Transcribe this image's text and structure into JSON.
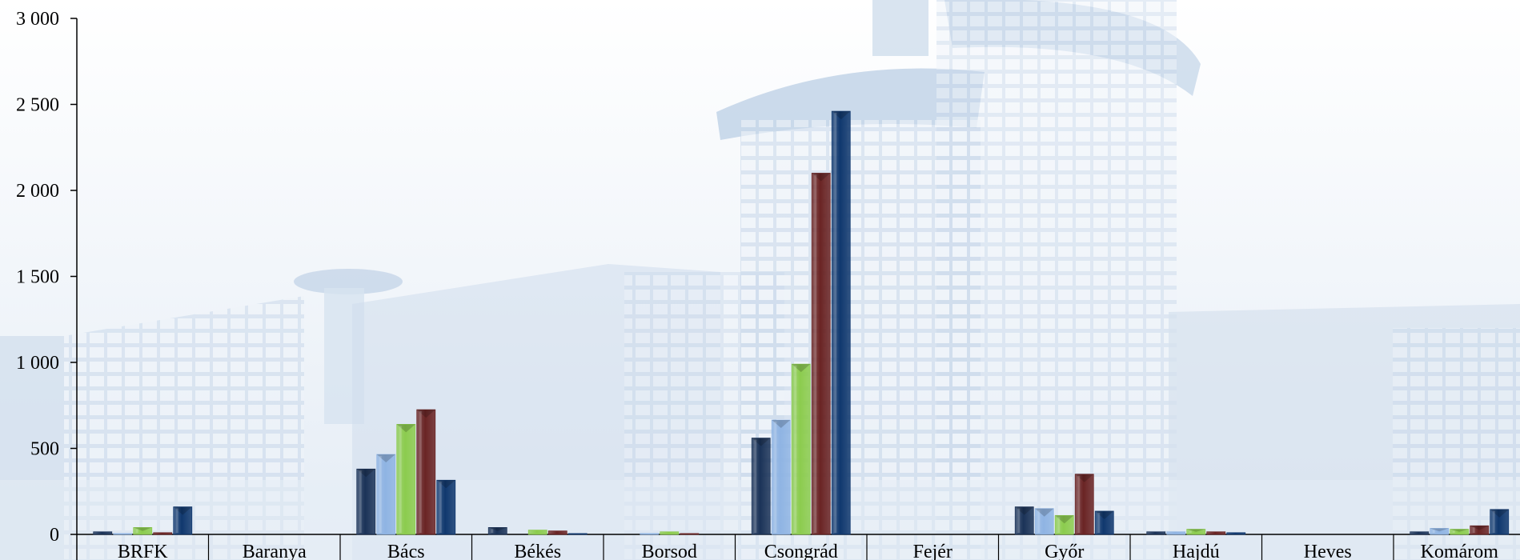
{
  "chart_data": {
    "type": "bar",
    "title": "",
    "xlabel": "",
    "ylabel": "",
    "ylim": [
      0,
      3000
    ],
    "yticks": [
      0,
      500,
      1000,
      1500,
      2000,
      2500,
      3000
    ],
    "ytick_labels": [
      "0",
      "500",
      "1 000",
      "1 500",
      "2 000",
      "2 500",
      "3 000"
    ],
    "grid": false,
    "legend": "none",
    "categories": [
      "BRFK",
      "Baranya",
      "Bács",
      "Békés",
      "Borsod",
      "Csongrád",
      "Fejér",
      "Győr",
      "Hajdú",
      "Heves",
      "Komárom"
    ],
    "series": [
      {
        "color": "#1b3358",
        "values": [
          15,
          0,
          380,
          40,
          0,
          560,
          0,
          160,
          15,
          0,
          15
        ]
      },
      {
        "color": "#8fb4e3",
        "values": [
          5,
          0,
          465,
          0,
          5,
          665,
          0,
          150,
          15,
          0,
          35
        ]
      },
      {
        "color": "#8ccc4e",
        "values": [
          40,
          0,
          640,
          25,
          15,
          990,
          0,
          110,
          30,
          0,
          30
        ]
      },
      {
        "color": "#6a2424",
        "values": [
          10,
          0,
          725,
          20,
          5,
          2100,
          0,
          350,
          15,
          0,
          50
        ]
      },
      {
        "color": "#10386e",
        "values": [
          160,
          0,
          315,
          5,
          0,
          2460,
          0,
          135,
          10,
          0,
          145
        ]
      }
    ]
  }
}
